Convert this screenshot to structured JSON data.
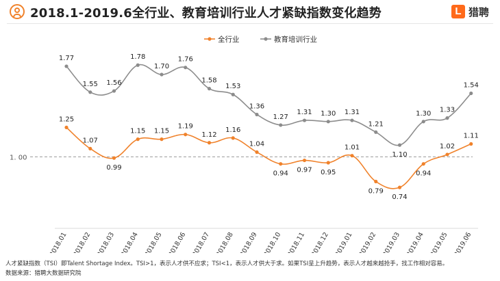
{
  "title": "2018.1-2019.6全行业、教育培训行业人才紧缺指数变化趋势",
  "logo": {
    "mark": "L",
    "text": "猎聘"
  },
  "footnote": {
    "line1": "人才紧缺指数（TSI）即Talent Shortage Index。TSI>1，表示人才供不应求；TSI<1，表示人才供大于求。如果TSI呈上升趋势，表示人才越来越抢手，找工作相对容易。",
    "line2": "数据来源：猎聘大数据研究院"
  },
  "chart_data": {
    "type": "line",
    "categories": [
      "2018.01",
      "2018.02",
      "2018.03",
      "2018.04",
      "2018.05",
      "2018.06",
      "2018.07",
      "2018.08",
      "2018.09",
      "2018.10",
      "2018.11",
      "2018.12",
      "2019.01",
      "2019.02",
      "2019.03",
      "2019.04",
      "2019.05",
      "2019.06"
    ],
    "series": [
      {
        "name": "全行业",
        "color": "#f0822b",
        "values": [
          1.25,
          1.07,
          0.99,
          1.15,
          1.15,
          1.19,
          1.12,
          1.16,
          1.04,
          0.94,
          0.97,
          0.95,
          1.01,
          0.79,
          0.74,
          0.94,
          1.02,
          1.11
        ]
      },
      {
        "name": "教育培训行业",
        "color": "#8c8c8c",
        "values": [
          1.77,
          1.55,
          1.56,
          1.78,
          1.7,
          1.76,
          1.58,
          1.53,
          1.36,
          1.27,
          1.31,
          1.3,
          1.31,
          1.21,
          1.1,
          1.3,
          1.33,
          1.54
        ]
      }
    ],
    "reference_line": {
      "value": 1.0,
      "label": "1. 00"
    },
    "ylim": [
      0.45,
      1.95
    ],
    "legend_position": "top-center",
    "grid": false
  }
}
